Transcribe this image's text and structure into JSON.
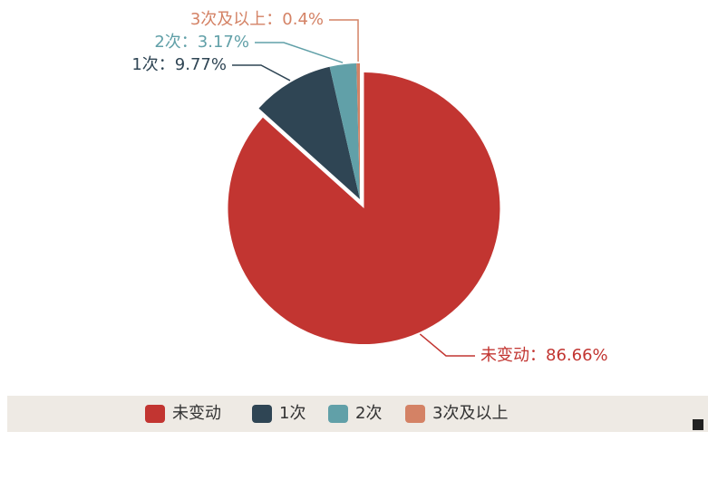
{
  "chart_data": {
    "type": "pie",
    "categories": [
      "未变动",
      "1次",
      "2次",
      "3次及以上"
    ],
    "values": [
      86.66,
      9.77,
      3.17,
      0.4
    ],
    "value_labels": [
      "未变动：86.66%",
      "1次：9.77%",
      "2次：3.17%",
      "3次及以上：0.4%"
    ],
    "colors": [
      "#c23531",
      "#2f4554",
      "#61a0a8",
      "#d48265"
    ],
    "legend": "bottom"
  }
}
